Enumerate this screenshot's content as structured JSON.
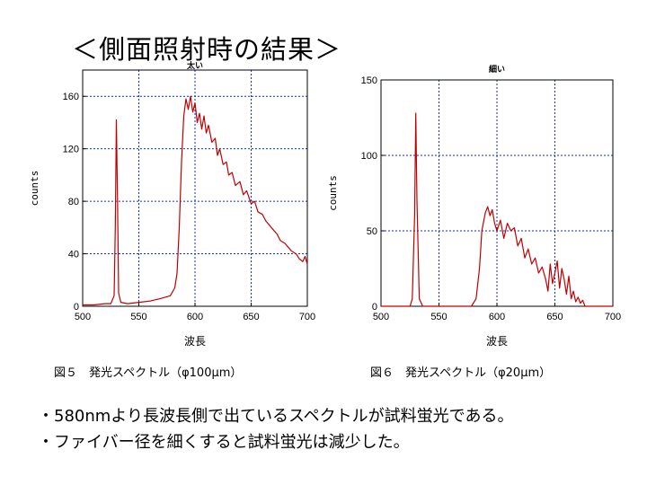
{
  "heading": "＜側面照射時の結果＞",
  "charts": [
    {
      "title": "太い",
      "xlabel": "波長",
      "ylabel": "counts",
      "caption": "図５　発光スペクトル（φ100μm）"
    },
    {
      "title": "細い",
      "xlabel": "波長",
      "ylabel": "counts",
      "caption": "図６　発光スペクトル（φ20μm）"
    }
  ],
  "bullets": [
    "・580nmより長波長側で出ているスペクトルが試料蛍光である。",
    "・ファイバー径を細くすると試料蛍光は減少した。"
  ],
  "colors": {
    "series": "#c00000",
    "grid": "#1030c0",
    "axis": "#000000"
  },
  "chart_data": [
    {
      "type": "line",
      "title": "太い",
      "xlabel": "波長",
      "ylabel": "counts",
      "xlim": [
        500,
        700
      ],
      "ylim": [
        0,
        180
      ],
      "xticks": [
        500,
        550,
        600,
        650,
        700
      ],
      "yticks": [
        0,
        40,
        80,
        120,
        160
      ],
      "grid": true,
      "series": [
        {
          "x": [
            500,
            510,
            520,
            525,
            528,
            529,
            530,
            531,
            532,
            534,
            540,
            550,
            560,
            570,
            578,
            582,
            584,
            586,
            588,
            590,
            592,
            594,
            596,
            598,
            600,
            602,
            604,
            606,
            608,
            610,
            612,
            615,
            618,
            620,
            622,
            625,
            628,
            630,
            633,
            636,
            640,
            643,
            646,
            650,
            653,
            656,
            660,
            663,
            666,
            670,
            673,
            676,
            680,
            683,
            686,
            690,
            693,
            696,
            698,
            700
          ],
          "y": [
            1,
            1,
            2,
            2,
            8,
            60,
            142,
            80,
            10,
            3,
            2,
            3,
            4,
            6,
            8,
            14,
            25,
            60,
            110,
            145,
            158,
            150,
            160,
            148,
            155,
            140,
            147,
            135,
            145,
            132,
            138,
            125,
            128,
            115,
            120,
            108,
            110,
            100,
            102,
            92,
            95,
            85,
            88,
            78,
            80,
            72,
            70,
            65,
            62,
            58,
            55,
            50,
            48,
            45,
            42,
            40,
            36,
            34,
            38,
            32
          ]
        }
      ]
    },
    {
      "type": "line",
      "title": "細い",
      "xlabel": "波長",
      "ylabel": "counts",
      "xlim": [
        500,
        700
      ],
      "ylim": [
        0,
        150
      ],
      "xticks": [
        500,
        550,
        600,
        650,
        700
      ],
      "yticks": [
        0,
        50,
        100,
        150
      ],
      "grid": true,
      "series": [
        {
          "x": [
            500,
            510,
            520,
            525,
            527,
            529,
            530,
            531,
            533,
            536,
            540,
            550,
            560,
            570,
            578,
            582,
            585,
            587,
            590,
            592,
            594,
            596,
            598,
            600,
            603,
            606,
            609,
            612,
            615,
            618,
            621,
            624,
            627,
            630,
            633,
            636,
            639,
            642,
            644,
            646,
            648,
            650,
            652,
            654,
            656,
            658,
            660,
            662,
            664,
            666,
            668,
            670,
            672,
            674,
            676,
            680,
            690,
            700
          ],
          "y": [
            0,
            0,
            0,
            0,
            5,
            60,
            128,
            70,
            5,
            0,
            0,
            0,
            0,
            0,
            0,
            5,
            25,
            50,
            62,
            66,
            60,
            64,
            55,
            50,
            57,
            45,
            55,
            50,
            52,
            40,
            45,
            32,
            38,
            28,
            32,
            22,
            26,
            18,
            10,
            28,
            15,
            22,
            30,
            12,
            25,
            18,
            8,
            20,
            5,
            10,
            3,
            6,
            2,
            4,
            0,
            0,
            0,
            0
          ]
        }
      ]
    }
  ]
}
